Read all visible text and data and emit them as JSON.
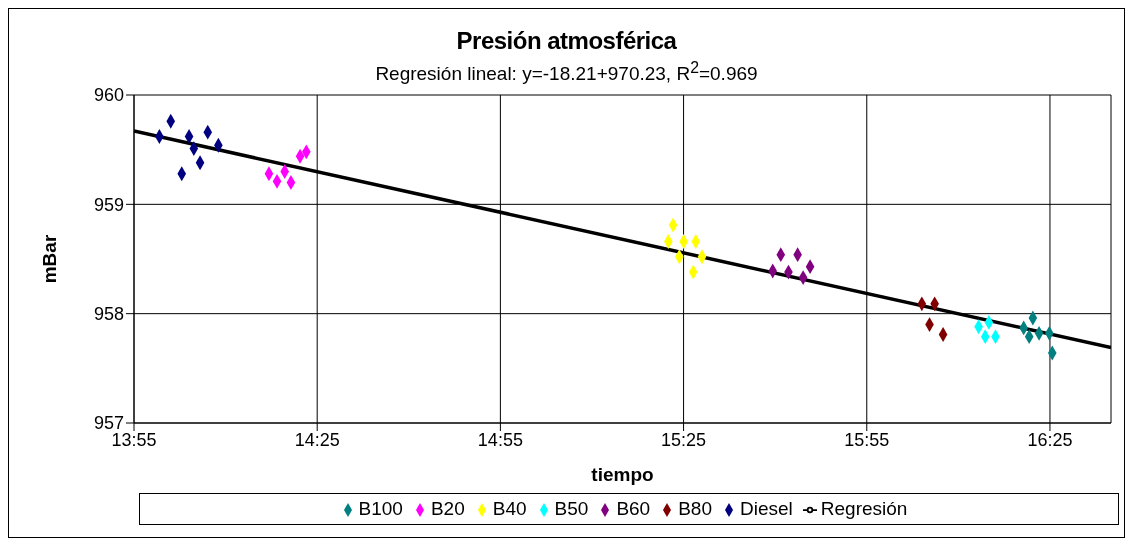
{
  "chart_data": {
    "type": "scatter",
    "title": "Presión atmosférica",
    "subtitle": "Regresión lineal: y=-18.21+970.23, R$^{2}$=0.969",
    "xlabel": "tiempo",
    "ylabel": "mBar",
    "marker": "diamond",
    "grid": true,
    "legend": "bottom",
    "xlim": [
      13.9167,
      16.5833
    ],
    "xticks": [
      {
        "value": 13.9167,
        "label": "13:55"
      },
      {
        "value": 14.4167,
        "label": "14:25"
      },
      {
        "value": 14.9167,
        "label": "14:55"
      },
      {
        "value": 15.4167,
        "label": "15:25"
      },
      {
        "value": 15.9167,
        "label": "15:55"
      },
      {
        "value": 16.4167,
        "label": "16:25"
      }
    ],
    "ylim": [
      957,
      960
    ],
    "yticks": [
      957,
      958,
      959,
      960
    ],
    "series": [
      {
        "name": "Diesel",
        "color": "#000080",
        "x": [
          13.986,
          14.017,
          14.047,
          14.067,
          14.08,
          14.097,
          14.118,
          14.147
        ],
        "values": [
          959.62,
          959.76,
          959.28,
          959.62,
          959.51,
          959.38,
          959.66,
          959.54
        ]
      },
      {
        "name": "B20",
        "color": "#ff00ff",
        "x": [
          14.285,
          14.307,
          14.328,
          14.345,
          14.37,
          14.387
        ],
        "values": [
          959.28,
          959.21,
          959.3,
          959.2,
          959.44,
          959.48
        ]
      },
      {
        "name": "B40",
        "color": "#ffff00",
        "x": [
          15.388,
          15.375,
          15.417,
          15.45,
          15.405,
          15.467,
          15.443
        ],
        "values": [
          958.81,
          958.66,
          958.66,
          958.66,
          958.52,
          958.52,
          958.38
        ]
      },
      {
        "name": "B50",
        "color": "#00ffff",
        "x": [
          16.222,
          16.25,
          16.24,
          16.268
        ],
        "values": [
          957.88,
          957.92,
          957.79,
          957.79
        ]
      },
      {
        "name": "B60",
        "color": "#800080",
        "x": [
          15.682,
          15.66,
          15.728,
          15.703,
          15.762,
          15.743
        ],
        "values": [
          958.54,
          958.39,
          958.54,
          958.38,
          958.43,
          958.33
        ]
      },
      {
        "name": "B80",
        "color": "#800000",
        "x": [
          16.067,
          16.102,
          16.088,
          16.125
        ],
        "values": [
          958.09,
          958.09,
          957.9,
          957.81
        ]
      },
      {
        "name": "B100",
        "color": "#008080",
        "x": [
          16.37,
          16.345,
          16.36,
          16.387,
          16.415,
          16.423
        ],
        "values": [
          957.96,
          957.87,
          957.79,
          957.82,
          957.82,
          957.64
        ]
      },
      {
        "name": "Regresión",
        "type": "line",
        "color": "#000000",
        "marker": "none",
        "x": [
          13.9167,
          16.5833
        ],
        "values": [
          959.67,
          957.69
        ]
      }
    ]
  }
}
